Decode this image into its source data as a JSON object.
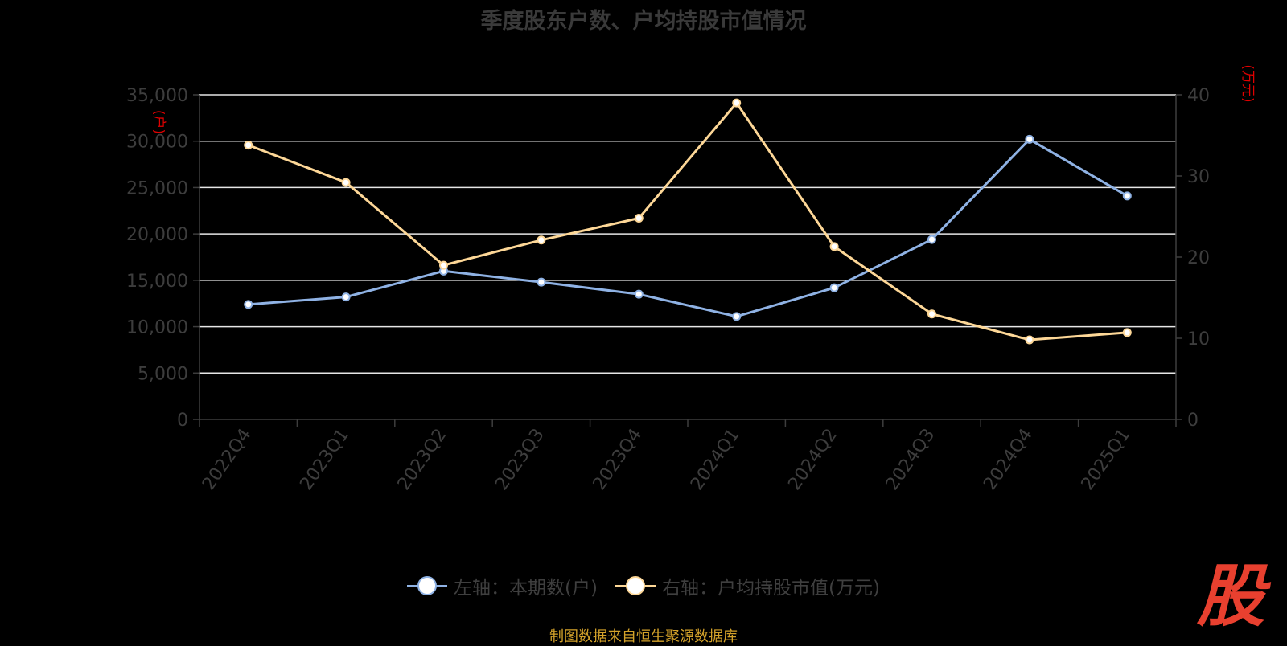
{
  "title": "季度股东户数、户均持股市值情况",
  "source": "制图数据来自恒生聚源数据库",
  "logo_text": "股",
  "colors": {
    "series_left": "#8fb2e4",
    "series_right": "#fdd797",
    "axis_text": "#3d3d3d",
    "unit_text": "#e00000",
    "grid": "#e6e6e6",
    "background": "#000000"
  },
  "chart_data": {
    "type": "line",
    "title": "季度股东户数、户均持股市值情况",
    "categories": [
      "2022Q4",
      "2023Q1",
      "2023Q2",
      "2023Q3",
      "2023Q4",
      "2024Q1",
      "2024Q2",
      "2024Q3",
      "2024Q4",
      "2025Q1"
    ],
    "left_axis": {
      "unit": "(户)",
      "ylim": [
        0,
        35000
      ],
      "ticks": [
        0,
        5000,
        10000,
        15000,
        20000,
        25000,
        30000,
        35000
      ],
      "tick_labels": [
        "0",
        "5,000",
        "10,000",
        "15,000",
        "20,000",
        "25,000",
        "30,000",
        "35,000"
      ]
    },
    "right_axis": {
      "unit": "(万元)",
      "ylim": [
        0,
        40
      ],
      "ticks": [
        0,
        10,
        20,
        30,
        40
      ],
      "tick_labels": [
        "0",
        "10",
        "20",
        "30",
        "40"
      ]
    },
    "grid": true,
    "legend_position": "bottom",
    "series": [
      {
        "name": "左轴：本期数(户)",
        "axis": "left",
        "values": [
          12400,
          13200,
          16000,
          14800,
          13500,
          11100,
          14200,
          19400,
          30200,
          24100
        ]
      },
      {
        "name": "右轴：户均持股市值(万元)",
        "axis": "right",
        "values": [
          33.8,
          29.2,
          19.0,
          22.1,
          24.8,
          39.0,
          21.3,
          13.0,
          9.8,
          10.7
        ]
      }
    ]
  }
}
